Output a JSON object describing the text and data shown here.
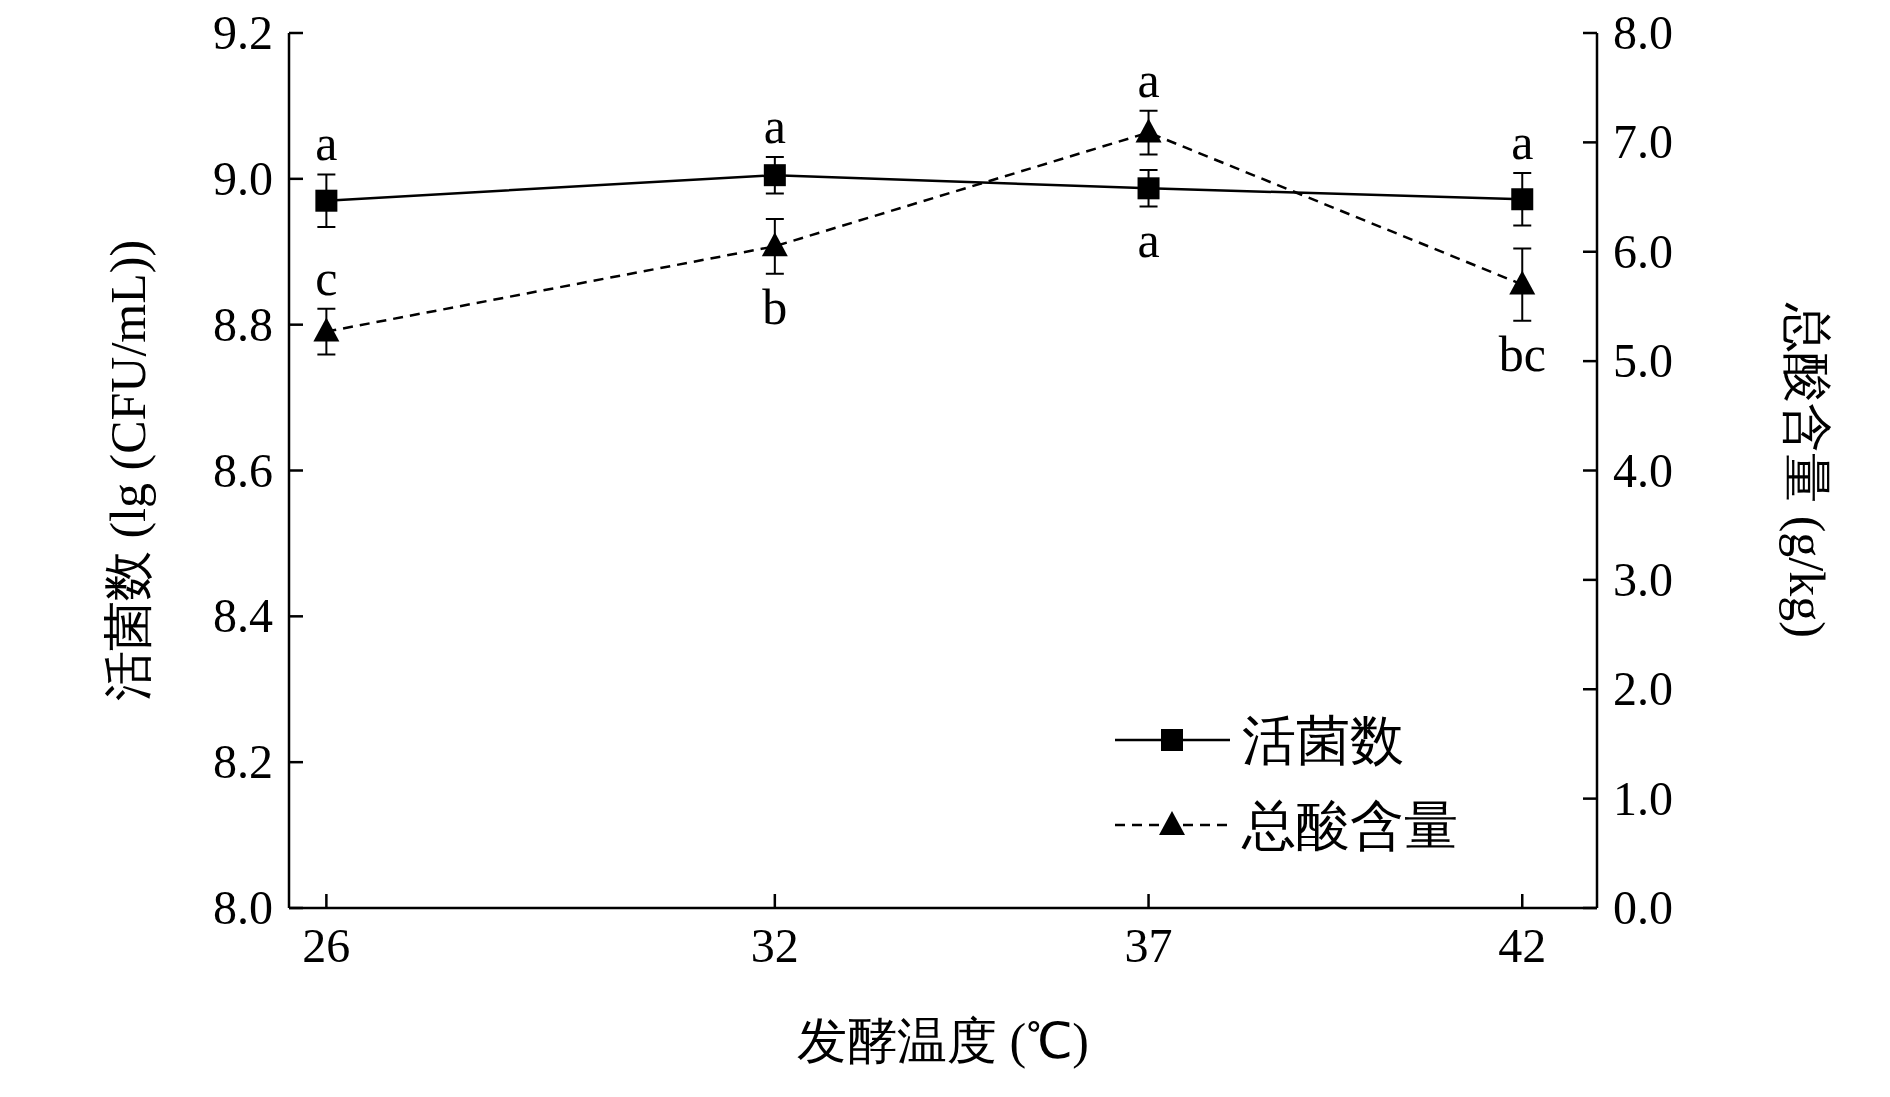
{
  "chart_data": {
    "type": "line",
    "xlabel": "发酵温度 (℃)",
    "ylabel": "活菌数 (lg (CFU/mL))",
    "y2label": "总酸含量 (g/kg)",
    "x": [
      26,
      32,
      37,
      42
    ],
    "xlim": [
      25.5,
      43
    ],
    "xticks": [
      26,
      32,
      37,
      42
    ],
    "ylim": [
      8.0,
      9.2
    ],
    "yticks": [
      {
        "value": 8.0,
        "label": "8.0"
      },
      8.2,
      8.4,
      8.6,
      8.8,
      {
        "value": 9.0,
        "label": "9.0"
      },
      9.2
    ],
    "y2lim": [
      0,
      8
    ],
    "y2ticks": [
      {
        "value": 0,
        "label": "0.0"
      },
      {
        "value": 1,
        "label": "1.0"
      },
      {
        "value": 2,
        "label": "2.0"
      },
      {
        "value": 3,
        "label": "3.0"
      },
      {
        "value": 4,
        "label": "4.0"
      },
      {
        "value": 5,
        "label": "5.0"
      },
      {
        "value": 6,
        "label": "6.0"
      },
      {
        "value": 7,
        "label": "7.0"
      },
      {
        "value": 8,
        "label": "8.0"
      }
    ],
    "legend": "bottom right",
    "grid": false,
    "series": [
      {
        "name": "活菌数",
        "color": "#000000",
        "marker": "square",
        "line_style": "solid",
        "values": [
          8.97,
          9.005,
          8.987,
          8.972
        ],
        "value_labels": [
          "a",
          "a",
          "a",
          "a"
        ],
        "errors": [
          0.036,
          0.025,
          0.025,
          0.036
        ]
      },
      {
        "name": "总酸含量",
        "color": "#000000",
        "marker": "triangle",
        "line_style": "dashed",
        "axis": "y2",
        "values": [
          5.27,
          6.05,
          7.09,
          5.7
        ],
        "value_labels": [
          "c",
          "b",
          "a",
          "bc"
        ],
        "errors": [
          0.21,
          0.25,
          0.2,
          0.33
        ]
      }
    ]
  }
}
